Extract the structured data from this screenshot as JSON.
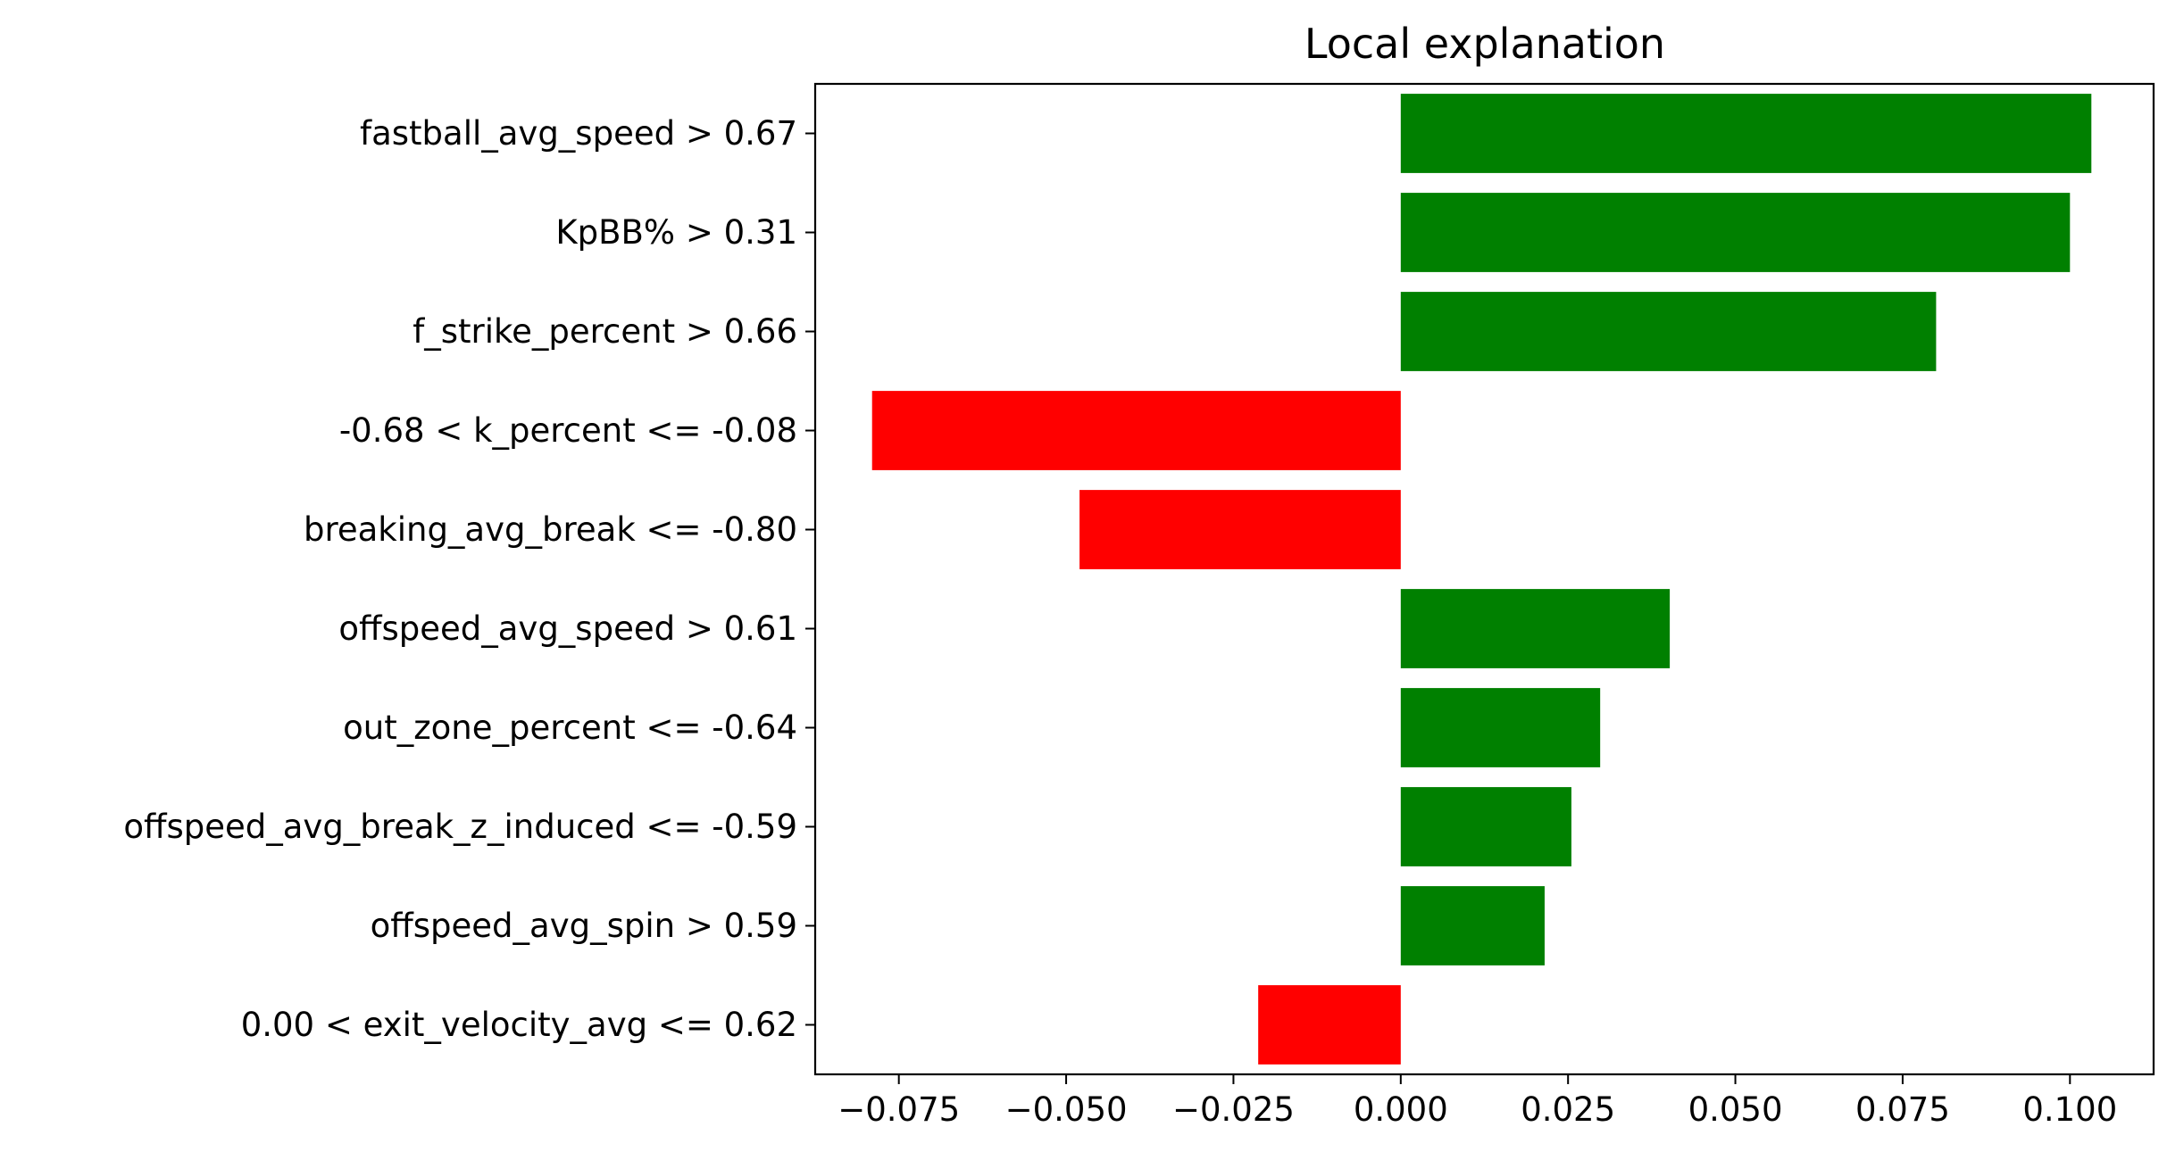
{
  "chart_data": {
    "type": "bar",
    "orientation": "horizontal",
    "title": "Local explanation",
    "xlabel": "",
    "ylabel": "",
    "xlim": [
      -0.0875,
      0.1125
    ],
    "xticks": [
      -0.075,
      -0.05,
      -0.025,
      0.0,
      0.025,
      0.05,
      0.075,
      0.1
    ],
    "xtick_labels": [
      "−0.075",
      "−0.050",
      "−0.025",
      "0.000",
      "0.025",
      "0.050",
      "0.075",
      "0.100"
    ],
    "categories": [
      "fastball_avg_speed > 0.67",
      "KpBB% > 0.31",
      "f_strike_percent > 0.66",
      "-0.68 < k_percent <= -0.08",
      "breaking_avg_break <= -0.80",
      "offspeed_avg_speed > 0.61",
      "out_zone_percent <= -0.64",
      "offspeed_avg_break_z_induced <= -0.59",
      "offspeed_avg_spin > 0.59",
      "0.00 < exit_velocity_avg <= 0.62"
    ],
    "values": [
      0.1032,
      0.1,
      0.08,
      -0.079,
      -0.048,
      0.0402,
      0.0298,
      0.0255,
      0.0215,
      -0.0213
    ],
    "colors": {
      "positive": "#008000",
      "negative": "#ff0000"
    },
    "grid": false,
    "legend": "none"
  }
}
